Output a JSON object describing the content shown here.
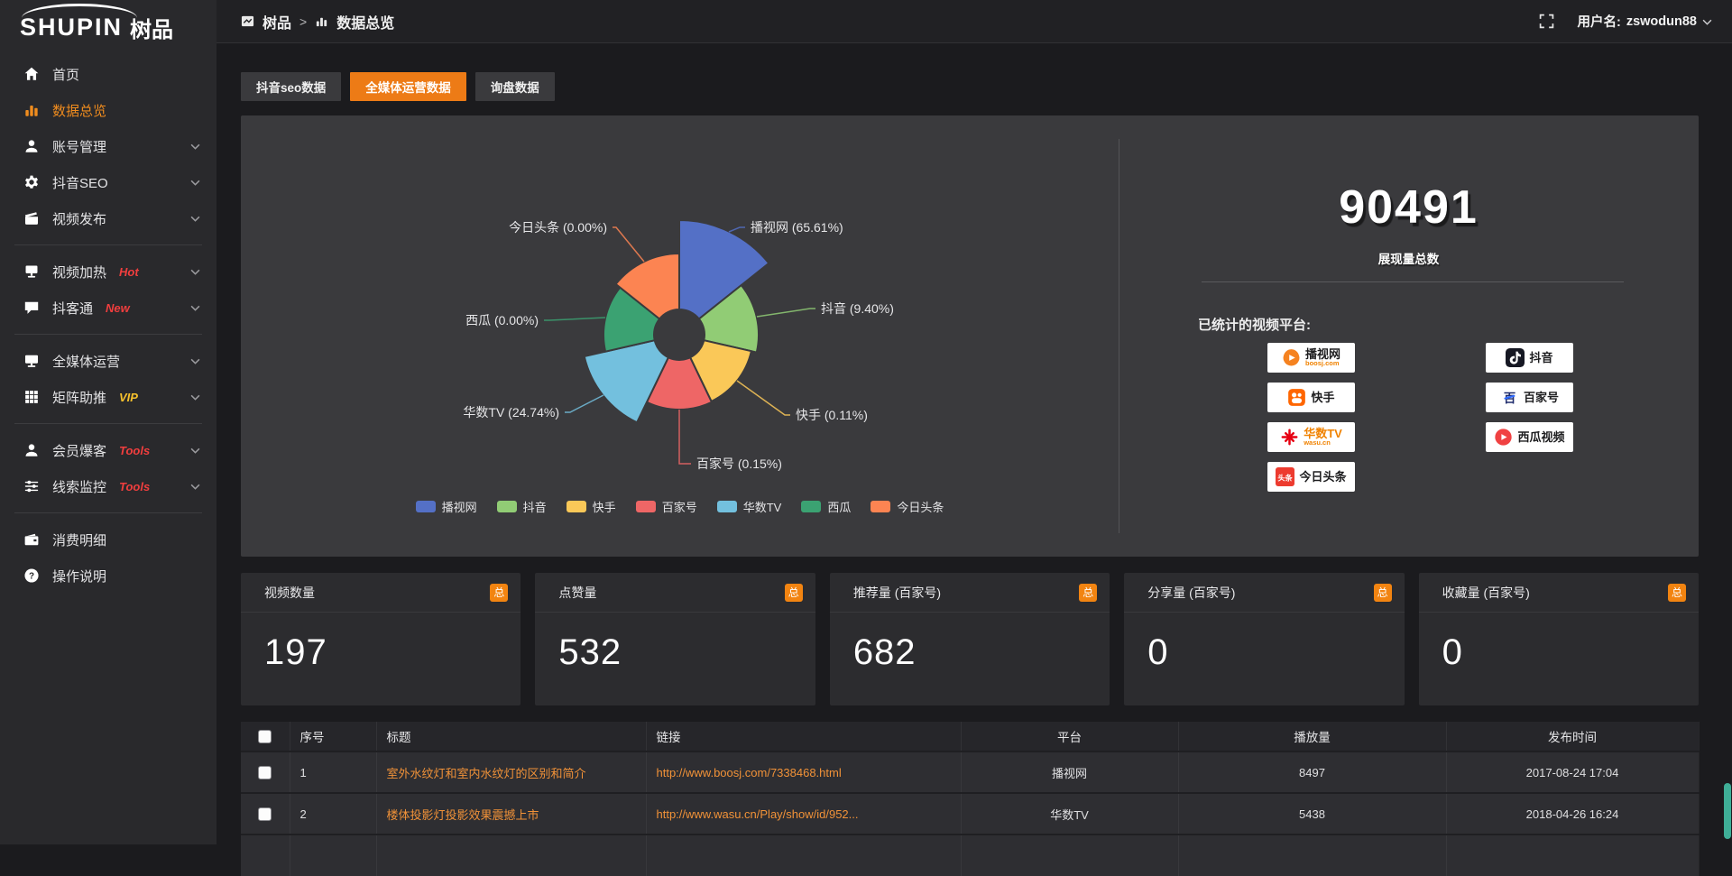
{
  "logo": {
    "main": "SHUPIN",
    "suffix": "树品"
  },
  "topbar": {
    "breadcrumb": {
      "root": "树品",
      "separator": ">",
      "current": "数据总览"
    },
    "username_prefix": "用户名:",
    "username": "zswodun88"
  },
  "sidebar": {
    "items": [
      {
        "key": "home",
        "label": "首页",
        "icon": "home"
      },
      {
        "key": "data-overview",
        "label": "数据总览",
        "icon": "bar-chart",
        "active": true
      },
      {
        "key": "account-manage",
        "label": "账号管理",
        "icon": "user",
        "chevron": true
      },
      {
        "key": "douyin-seo",
        "label": "抖音SEO",
        "icon": "gear",
        "chevron": true
      },
      {
        "key": "video-publish",
        "label": "视频发布",
        "icon": "video",
        "chevron": true
      },
      {
        "key": "video-heat",
        "label": "视频加热",
        "icon": "heat",
        "chevron": true,
        "badge": "Hot",
        "badge_color": "#f03e3e",
        "divider_before": true
      },
      {
        "key": "douketong",
        "label": "抖客通",
        "icon": "chat",
        "chevron": true,
        "badge": "New",
        "badge_color": "#f03e3e"
      },
      {
        "key": "media-operation",
        "label": "全媒体运营",
        "icon": "monitor",
        "chevron": true,
        "divider_before": true
      },
      {
        "key": "matrix-boost",
        "label": "矩阵助推",
        "icon": "grid",
        "chevron": true,
        "badge": "VIP",
        "badge_color": "#f6c12c"
      },
      {
        "key": "member-baoke",
        "label": "会员爆客",
        "icon": "user",
        "chevron": true,
        "badge": "Tools",
        "badge_color": "#f03e3e",
        "divider_before": true
      },
      {
        "key": "clue-monitor",
        "label": "线索监控",
        "icon": "sliders",
        "chevron": true,
        "badge": "Tools",
        "badge_color": "#f03e3e"
      },
      {
        "key": "consume-detail",
        "label": "消费明细",
        "icon": "wallet",
        "divider_before": true
      },
      {
        "key": "operation-guide",
        "label": "操作说明",
        "icon": "question"
      }
    ]
  },
  "tabs": [
    {
      "key": "douyin-seo-data",
      "label": "抖音seo数据"
    },
    {
      "key": "media-operation-data",
      "label": "全媒体运营数据",
      "active": true
    },
    {
      "key": "inquiry-data",
      "label": "询盘数据"
    }
  ],
  "chart_data": {
    "type": "pie",
    "variant": "nightingale-rose",
    "legend_position": "bottom",
    "unit": "percent",
    "inner_radius": 28,
    "series": [
      {
        "name": "播视网",
        "value": 65.61,
        "pct_label": "65.61%",
        "color": "#5470c6",
        "display_radius": 127
      },
      {
        "name": "抖音",
        "value": 9.4,
        "pct_label": "9.40%",
        "color": "#91cc75",
        "display_radius": 88
      },
      {
        "name": "快手",
        "value": 0.11,
        "pct_label": "0.11%",
        "color": "#fac858",
        "display_radius": 82
      },
      {
        "name": "百家号",
        "value": 0.15,
        "pct_label": "0.15%",
        "color": "#ee6666",
        "display_radius": 83
      },
      {
        "name": "华数TV",
        "value": 24.74,
        "pct_label": "24.74%",
        "color": "#73c0de",
        "display_radius": 108
      },
      {
        "name": "西瓜",
        "value": 0.0,
        "pct_label": "0.00%",
        "color": "#3ba272",
        "display_radius": 84
      },
      {
        "name": "今日头条",
        "value": 0.0,
        "pct_label": "0.00%",
        "color": "#fc8452",
        "display_radius": 90
      }
    ]
  },
  "summary": {
    "total_value": "90491",
    "total_label": "展现量总数",
    "platforms_title": "已统计的视频平台:",
    "platform_columns": [
      [
        {
          "name": "播视网",
          "subtext": "boosj.com",
          "icon": "boosj"
        },
        {
          "name": "快手",
          "icon": "kuaishou"
        },
        {
          "name": "华数TV",
          "subtext": "wasu.cn",
          "icon": "wasu"
        },
        {
          "name": "今日头条",
          "icon": "toutiao"
        }
      ],
      [
        {
          "name": "抖音",
          "icon": "douyin"
        },
        {
          "name": "百家号",
          "icon": "baijiahao"
        },
        {
          "name": "西瓜视频",
          "icon": "xigua"
        }
      ]
    ]
  },
  "stat_cards": [
    {
      "title": "视频数量",
      "badge": "总",
      "value": "197"
    },
    {
      "title": "点赞量",
      "badge": "总",
      "value": "532"
    },
    {
      "title": "推荐量 (百家号)",
      "badge": "总",
      "value": "682"
    },
    {
      "title": "分享量 (百家号)",
      "badge": "总",
      "value": "0"
    },
    {
      "title": "收藏量 (百家号)",
      "badge": "总",
      "value": "0"
    }
  ],
  "table": {
    "columns": [
      "序号",
      "标题",
      "链接",
      "平台",
      "播放量",
      "发布时间"
    ],
    "rows": [
      {
        "no": "1",
        "title": "室外水纹灯和室内水纹灯的区别和简介",
        "link": "http://www.boosj.com/7338468.html",
        "platform": "播视网",
        "views": "8497",
        "time": "2017-08-24 17:04"
      },
      {
        "no": "2",
        "title": "楼体投影灯投影效果震撼上市",
        "link": "http://www.wasu.cn/Play/show/id/952...",
        "platform": "华数TV",
        "views": "5438",
        "time": "2018-04-26 16:24"
      }
    ]
  },
  "colors": {
    "accent": "#ed7b16",
    "link": "#f19238",
    "badge": "#f28411",
    "panel": "#3a3a3d"
  }
}
